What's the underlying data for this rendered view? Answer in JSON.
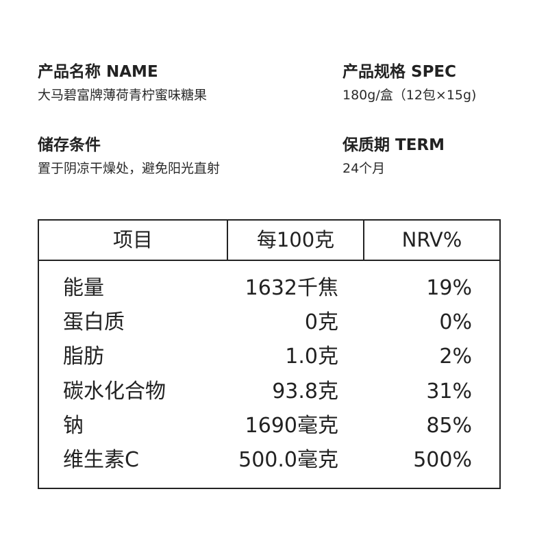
{
  "info": {
    "name": {
      "label": "产品名称 NAME",
      "value": "大马碧富牌薄荷青柠蜜味糖果"
    },
    "spec": {
      "label": "产品规格 SPEC",
      "value": "180g/盒（12包×15g)"
    },
    "storage": {
      "label": "储存条件",
      "value": "置于阴凉干燥处，避免阳光直射"
    },
    "term": {
      "label": "保质期 TERM",
      "value": "24个月"
    }
  },
  "nutrition": {
    "headers": [
      "项目",
      "每100克",
      "NRV%"
    ],
    "rows": [
      {
        "item": "能量",
        "per100g": "1632千焦",
        "nrv": "19%"
      },
      {
        "item": "蛋白质",
        "per100g": "0克",
        "nrv": "0%"
      },
      {
        "item": "脂肪",
        "per100g": "1.0克",
        "nrv": "2%"
      },
      {
        "item": "碳水化合物",
        "per100g": "93.8克",
        "nrv": "31%"
      },
      {
        "item": "钠",
        "per100g": "1690毫克",
        "nrv": "85%"
      },
      {
        "item": "维生素C",
        "per100g": "500.0毫克",
        "nrv": "500%"
      }
    ]
  }
}
